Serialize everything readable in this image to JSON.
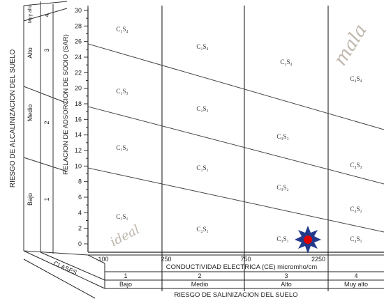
{
  "diagram": {
    "left_axis_title": "RIESGO DE ALCALINIZACION DEL SUELO",
    "sar_axis_title": "RELACION DE ADSORCION DE SODIO (SAR)",
    "y_ticks": [
      "0",
      "2",
      "4",
      "6",
      "8",
      "10",
      "12",
      "14",
      "16",
      "18",
      "20",
      "22",
      "24",
      "26",
      "28",
      "30"
    ],
    "alkali_classes": [
      {
        "label": "Bajo",
        "num": "1"
      },
      {
        "label": "Medio",
        "num": "2"
      },
      {
        "label": "Alto",
        "num": "3"
      },
      {
        "label": "Muy alto",
        "num": "4"
      }
    ],
    "x_ticks": [
      "100",
      "250",
      "750",
      "2250"
    ],
    "ce_axis_title": "CONDUCTIVIDAD ELECTRICA (CE) micromho/cm",
    "clases_label": "CLASES",
    "salinity_classes": [
      {
        "num": "1",
        "label": "Bajo"
      },
      {
        "num": "2",
        "label": "Medio"
      },
      {
        "num": "3",
        "label": "Alto"
      },
      {
        "num": "4",
        "label": "Muy alto"
      }
    ],
    "salinity_axis_title": "RIESGO DE SALINIZACION DEL SUELO",
    "zones": {
      "c1s4": "C₁S₄",
      "c2s4": "C₂S₄",
      "c3s4": "C₃S₄",
      "c4s4": "C₄S₄",
      "c1s3": "C₁S₃",
      "c2s3": "C₂S₃",
      "c3s3": "C₃S₃",
      "c4s3": "C₄S₃",
      "c1s2": "C₁S₂",
      "c2s2": "C₂S₂",
      "c3s2": "C₃S₂",
      "c4s2": "C₄S₂",
      "c1s1": "C₁S₁",
      "c2s1": "C₂S₁",
      "c3s1": "C₃S₁",
      "c4s1": "C₄S₁"
    },
    "handwriting": {
      "top_right": "mala",
      "bottom_left": "ideal"
    },
    "marker": {
      "color_star": "#233a8c",
      "color_dot": "#e10000"
    }
  }
}
